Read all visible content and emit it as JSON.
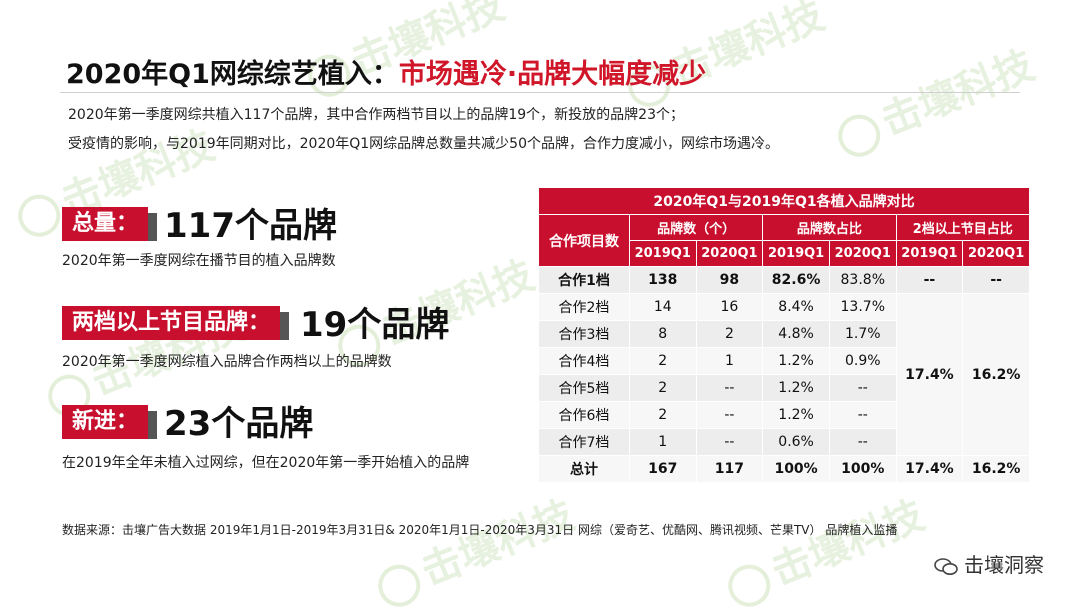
{
  "watermark": "击壤科技",
  "title": {
    "prefix": "2020年Q1网综综艺植入：",
    "highlight": "市场遇冷·品牌大幅度减少"
  },
  "intro": [
    "2020年第一季度网综共植入117个品牌，其中合作两档节目以上的品牌19个，新投放的品牌23个；",
    "受疫情的影响，与2019年同期对比，2020年Q1网综品牌总数量共减少50个品牌，合作力度减小，网综市场遇冷。"
  ],
  "metrics": [
    {
      "label": "总量：",
      "value": "117个品牌",
      "desc": "2020年第一季度网综在播节目的植入品牌数"
    },
    {
      "label": "两档以上节目品牌：",
      "value": "19个品牌",
      "desc": "2020年第一季度网综植入品牌合作两档以上的品牌数"
    },
    {
      "label": "新进：",
      "value": "23个品牌",
      "desc": "在2019年全年未植入过网综，但在2020年第一季开始植入的品牌"
    }
  ],
  "table": {
    "caption": "2020年Q1与2019年Q1各植入品牌对比",
    "row_header": "合作项目数",
    "groups": [
      "品牌数（个）",
      "品牌数占比",
      "2档以上节目占比"
    ],
    "subheaders": [
      "2019Q1",
      "2020Q1",
      "2019Q1",
      "2020Q1",
      "2019Q1",
      "2020Q1"
    ],
    "rows": [
      {
        "name": "合作1档",
        "c1": "138",
        "c2": "98",
        "p1": "82.6%",
        "p2": "83.8%",
        "m1": "--",
        "m2": "--"
      },
      {
        "name": "合作2档",
        "c1": "14",
        "c2": "16",
        "p1": "8.4%",
        "p2": "13.7%"
      },
      {
        "name": "合作3档",
        "c1": "8",
        "c2": "2",
        "p1": "4.8%",
        "p2": "1.7%"
      },
      {
        "name": "合作4档",
        "c1": "2",
        "c2": "1",
        "p1": "1.2%",
        "p2": "0.9%"
      },
      {
        "name": "合作5档",
        "c1": "2",
        "c2": "--",
        "p1": "1.2%",
        "p2": "--"
      },
      {
        "name": "合作6档",
        "c1": "2",
        "c2": "--",
        "p1": "1.2%",
        "p2": "--"
      },
      {
        "name": "合作7档",
        "c1": "1",
        "c2": "--",
        "p1": "0.6%",
        "p2": "--"
      }
    ],
    "merged": {
      "m1": "17.4%",
      "m2": "16.2%"
    },
    "total": {
      "name": "总计",
      "c1": "167",
      "c2": "117",
      "p1": "100%",
      "p2": "100%",
      "m1": "17.4%",
      "m2": "16.2%"
    }
  },
  "source": "数据来源：击壤广告大数据 2019年1月1日-2019年3月31日& 2020年1月1日-2020年3月31日 网综（爱奇艺、优酷网、腾讯视频、芒果TV） 品牌植入监播",
  "brand": "击壤洞察",
  "colors": {
    "accent": "#c8102e",
    "title_highlight": "#d0172a"
  }
}
